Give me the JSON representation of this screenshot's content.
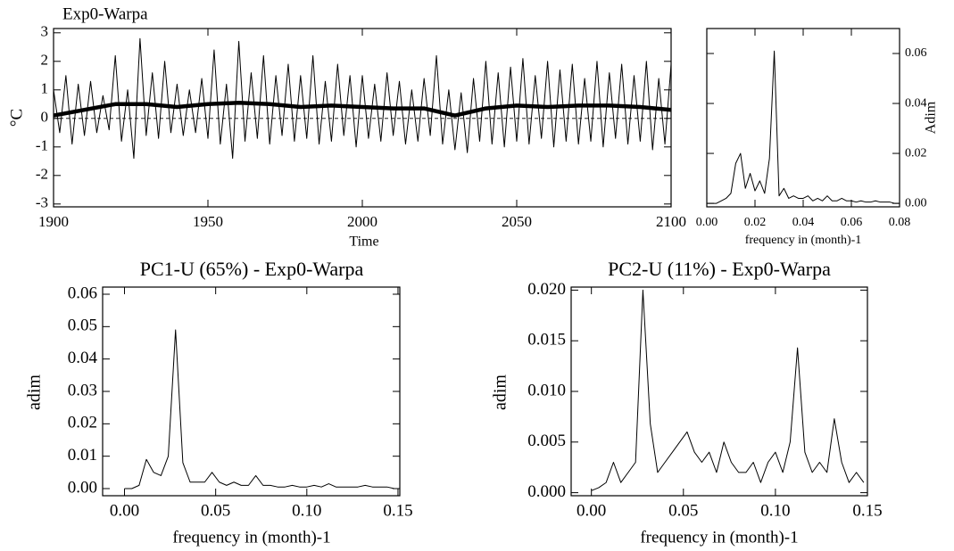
{
  "chart_data": [
    {
      "type": "line",
      "title": "Exp0-Warpa",
      "xlabel": "Time",
      "ylabel": "°C",
      "xlim": [
        1900,
        2100
      ],
      "xticks": [
        1900,
        1950,
        2000,
        2050,
        2100
      ],
      "ylim": [
        -3.1,
        3.15
      ],
      "yticks": [
        -3,
        -2,
        -1,
        0,
        1,
        2,
        3
      ],
      "y_axis_side": "left",
      "zero_line": true,
      "series": [
        {
          "color": "#000000",
          "x": [
            1900,
            1902,
            1904,
            1906,
            1908,
            1910,
            1912,
            1914,
            1916,
            1918,
            1920,
            1922,
            1924,
            1926,
            1928,
            1930,
            1932,
            1934,
            1936,
            1938,
            1940,
            1942,
            1944,
            1946,
            1948,
            1950,
            1952,
            1954,
            1956,
            1958,
            1960,
            1962,
            1964,
            1966,
            1968,
            1970,
            1972,
            1974,
            1976,
            1978,
            1980,
            1982,
            1984,
            1986,
            1988,
            1990,
            1992,
            1994,
            1996,
            1998,
            2000,
            2002,
            2004,
            2006,
            2008,
            2010,
            2012,
            2014,
            2016,
            2018,
            2020,
            2022,
            2024,
            2026,
            2028,
            2030,
            2032,
            2034,
            2036,
            2038,
            2040,
            2042,
            2044,
            2046,
            2048,
            2050,
            2052,
            2054,
            2056,
            2058,
            2060,
            2062,
            2064,
            2066,
            2068,
            2070,
            2072,
            2074,
            2076,
            2078,
            2080,
            2082,
            2084,
            2086,
            2088,
            2090,
            2092,
            2094,
            2096,
            2098,
            2100
          ],
          "values": [
            1.0,
            -0.5,
            1.5,
            -0.9,
            1.2,
            -0.6,
            1.3,
            -0.5,
            0.8,
            -0.4,
            2.2,
            -0.8,
            1.0,
            -1.4,
            2.8,
            -0.6,
            1.6,
            -0.7,
            2.0,
            -0.5,
            1.2,
            -0.6,
            1.0,
            -0.5,
            1.4,
            -0.7,
            2.4,
            -0.9,
            1.2,
            -1.4,
            2.7,
            -0.8,
            1.6,
            -0.7,
            2.2,
            -0.9,
            1.5,
            -0.6,
            1.9,
            -0.8,
            1.5,
            -0.7,
            2.2,
            -0.9,
            1.3,
            -0.8,
            1.9,
            -0.6,
            1.5,
            -1.0,
            1.5,
            -0.7,
            1.2,
            -0.8,
            1.6,
            -0.6,
            1.3,
            -0.9,
            1.0,
            -0.8,
            1.4,
            -0.6,
            2.2,
            -0.9,
            1.0,
            -1.1,
            0.9,
            -1.2,
            1.4,
            -0.8,
            2.0,
            -0.9,
            1.6,
            -1.0,
            1.8,
            -0.8,
            2.1,
            -0.9,
            1.5,
            -0.7,
            2.0,
            -1.0,
            1.7,
            -0.8,
            1.9,
            -0.9,
            1.4,
            -0.8,
            2.0,
            -1.0,
            1.6,
            -0.7,
            1.9,
            -0.9,
            1.5,
            -0.8,
            2.0,
            -1.1,
            1.4,
            -0.9,
            1.9
          ]
        },
        {
          "color": "#000000",
          "x": [
            1900,
            1910,
            1920,
            1930,
            1940,
            1950,
            1960,
            1970,
            1980,
            1990,
            2000,
            2010,
            2020,
            2030,
            2040,
            2050,
            2060,
            2070,
            2080,
            2090,
            2100
          ],
          "values": [
            0.1,
            0.3,
            0.5,
            0.5,
            0.4,
            0.5,
            0.55,
            0.5,
            0.4,
            0.45,
            0.4,
            0.35,
            0.35,
            0.1,
            0.35,
            0.45,
            0.4,
            0.45,
            0.45,
            0.4,
            0.3
          ]
        }
      ]
    },
    {
      "type": "line",
      "xlabel": "frequency in (month)-1",
      "ylabel": "Adim",
      "xlim": [
        0,
        0.08
      ],
      "xticks": [
        {
          "value": 0,
          "label": "0.00"
        },
        {
          "value": 0.02,
          "label": "0.02"
        },
        {
          "value": 0.04,
          "label": "0.04"
        },
        {
          "value": 0.06,
          "label": "0.06"
        },
        {
          "value": 0.08,
          "label": "0.08"
        }
      ],
      "ylim": [
        -0.0014,
        0.07
      ],
      "yticks": [
        {
          "value": 0,
          "label": "0.00"
        },
        {
          "value": 0.02,
          "label": "0.02"
        },
        {
          "value": 0.04,
          "label": "0.04"
        },
        {
          "value": 0.06,
          "label": "0.06"
        }
      ],
      "y_axis_side": "right",
      "series": [
        {
          "color": "#000000",
          "x": [
            0,
            0.002,
            0.004,
            0.006,
            0.008,
            0.01,
            0.012,
            0.014,
            0.016,
            0.018,
            0.02,
            0.022,
            0.024,
            0.026,
            0.028,
            0.03,
            0.032,
            0.034,
            0.036,
            0.038,
            0.04,
            0.042,
            0.044,
            0.046,
            0.048,
            0.05,
            0.052,
            0.054,
            0.056,
            0.058,
            0.06,
            0.062,
            0.064,
            0.066,
            0.068,
            0.07,
            0.072,
            0.074,
            0.076,
            0.078,
            0.08
          ],
          "values": [
            0,
            0,
            0,
            0.001,
            0.002,
            0.004,
            0.016,
            0.02,
            0.006,
            0.012,
            0.005,
            0.009,
            0.004,
            0.018,
            0.061,
            0.003,
            0.006,
            0.002,
            0.003,
            0.002,
            0.002,
            0.003,
            0.001,
            0.002,
            0.001,
            0.003,
            0.001,
            0.001,
            0.002,
            0.001,
            0.001,
            0.0005,
            0.001,
            0.0005,
            0.0005,
            0.001,
            0.0005,
            0.0005,
            0.0005,
            0,
            0
          ]
        }
      ]
    },
    {
      "type": "line",
      "title": "PC1-U (65%) - Exp0-Warpa",
      "xlabel": "frequency in (month)-1",
      "ylabel": "adim",
      "xlim": [
        -0.012,
        0.151
      ],
      "xticks": [
        {
          "value": 0,
          "label": "0.00"
        },
        {
          "value": 0.05,
          "label": "0.05"
        },
        {
          "value": 0.1,
          "label": "0.10"
        },
        {
          "value": 0.15,
          "label": "0.15"
        }
      ],
      "ylim": [
        -0.0022,
        0.0622
      ],
      "yticks": [
        {
          "value": 0,
          "label": "0.00"
        },
        {
          "value": 0.01,
          "label": "0.01"
        },
        {
          "value": 0.02,
          "label": "0.02"
        },
        {
          "value": 0.03,
          "label": "0.03"
        },
        {
          "value": 0.04,
          "label": "0.04"
        },
        {
          "value": 0.05,
          "label": "0.05"
        },
        {
          "value": 0.06,
          "label": "0.06"
        }
      ],
      "y_axis_side": "left",
      "series": [
        {
          "color": "#000000",
          "x": [
            0,
            0.004,
            0.008,
            0.012,
            0.016,
            0.02,
            0.024,
            0.028,
            0.032,
            0.036,
            0.04,
            0.044,
            0.048,
            0.052,
            0.056,
            0.06,
            0.064,
            0.068,
            0.072,
            0.076,
            0.08,
            0.084,
            0.088,
            0.092,
            0.096,
            0.1,
            0.104,
            0.108,
            0.112,
            0.116,
            0.12,
            0.124,
            0.128,
            0.132,
            0.136,
            0.14,
            0.144,
            0.148
          ],
          "values": [
            0,
            0,
            0.001,
            0.009,
            0.005,
            0.004,
            0.01,
            0.049,
            0.008,
            0.002,
            0.002,
            0.002,
            0.005,
            0.002,
            0.001,
            0.002,
            0.001,
            0.001,
            0.004,
            0.001,
            0.001,
            0.0005,
            0.0005,
            0.001,
            0.0005,
            0.0005,
            0.001,
            0.0005,
            0.0015,
            0.0005,
            0.0005,
            0.0005,
            0.0005,
            0.001,
            0.0005,
            0.0005,
            0.0005,
            0
          ]
        }
      ]
    },
    {
      "type": "line",
      "title": "PC2-U (11%) - Exp0-Warpa",
      "xlabel": "frequency in (month)-1",
      "ylabel": "adim",
      "xlim": [
        -0.011,
        0.15
      ],
      "xticks": [
        {
          "value": 0,
          "label": "0.00"
        },
        {
          "value": 0.05,
          "label": "0.05"
        },
        {
          "value": 0.1,
          "label": "0.10"
        },
        {
          "value": 0.15,
          "label": "0.15"
        }
      ],
      "ylim": [
        -0.0003,
        0.0203
      ],
      "yticks": [
        {
          "value": 0,
          "label": "0.000"
        },
        {
          "value": 0.005,
          "label": "0.005"
        },
        {
          "value": 0.01,
          "label": "0.010"
        },
        {
          "value": 0.015,
          "label": "0.015"
        },
        {
          "value": 0.02,
          "label": "0.020"
        }
      ],
      "y_axis_side": "left",
      "series": [
        {
          "color": "#000000",
          "x": [
            0,
            0.004,
            0.008,
            0.012,
            0.016,
            0.02,
            0.024,
            0.028,
            0.032,
            0.036,
            0.04,
            0.044,
            0.048,
            0.052,
            0.056,
            0.06,
            0.064,
            0.068,
            0.072,
            0.076,
            0.08,
            0.084,
            0.088,
            0.092,
            0.096,
            0.1,
            0.104,
            0.108,
            0.112,
            0.116,
            0.12,
            0.124,
            0.128,
            0.132,
            0.136,
            0.14,
            0.144,
            0.148
          ],
          "values": [
            0.0002,
            0.0005,
            0.001,
            0.003,
            0.001,
            0.002,
            0.003,
            0.02,
            0.0068,
            0.002,
            0.003,
            0.004,
            0.005,
            0.006,
            0.004,
            0.003,
            0.004,
            0.002,
            0.005,
            0.003,
            0.002,
            0.002,
            0.003,
            0.001,
            0.003,
            0.004,
            0.002,
            0.005,
            0.0143,
            0.004,
            0.002,
            0.003,
            0.002,
            0.0073,
            0.003,
            0.001,
            0.002,
            0.001
          ]
        }
      ]
    }
  ]
}
